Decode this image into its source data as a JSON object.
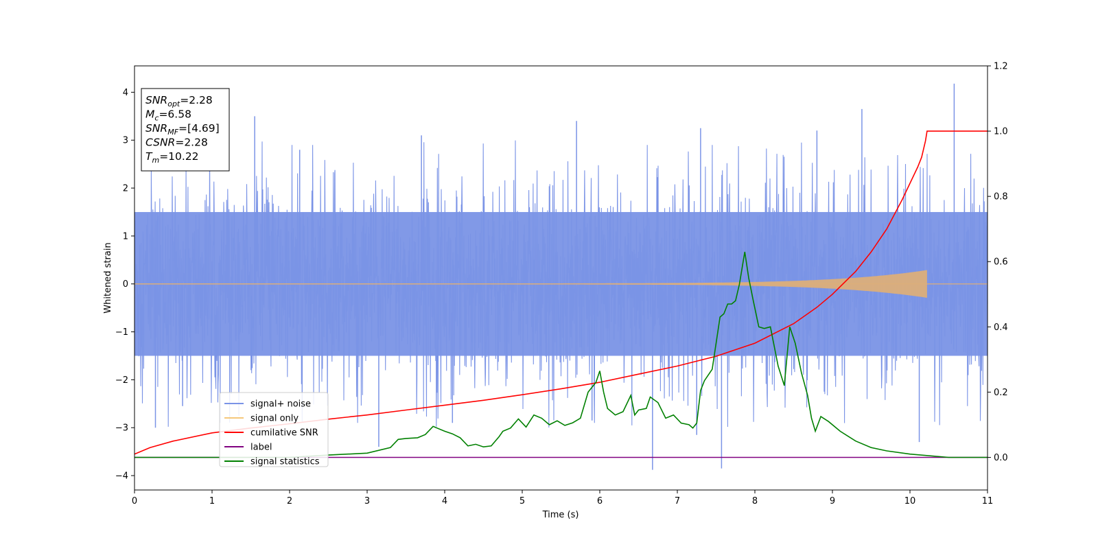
{
  "chart_data": {
    "type": "line",
    "xlabel": "Time (s)",
    "ylabel_left": "Whitened strain",
    "ylabel_right": "",
    "xlim": [
      0,
      11
    ],
    "ylim_left": [
      -4.3,
      4.55
    ],
    "ylim_right": [
      -0.1,
      1.2
    ],
    "x_ticks": [
      "0",
      "1",
      "2",
      "3",
      "4",
      "5",
      "6",
      "7",
      "8",
      "9",
      "10",
      "11"
    ],
    "y_ticks_left": [
      "−4",
      "−3",
      "−2",
      "−1",
      "0",
      "1",
      "2",
      "3",
      "4"
    ],
    "y_ticks_right": [
      "0.0",
      "0.2",
      "0.4",
      "0.6",
      "0.8",
      "1.0",
      "1.2"
    ],
    "legend_position": "lower-left",
    "info_box": {
      "position": "upper-left",
      "lines": [
        {
          "label": "SNR",
          "sub": "opt",
          "value": "=2.28"
        },
        {
          "label": "M",
          "sub": "c",
          "value": "=6.58"
        },
        {
          "label": "SNR",
          "sub": "MF",
          "value": "=[4.69]"
        },
        {
          "label": "CSNR",
          "sub": "",
          "value": "=2.28"
        },
        {
          "label": "T",
          "sub": "m",
          "value": "=10.22"
        }
      ]
    },
    "series": [
      {
        "name": "signal+ noise",
        "axis": "left",
        "color": "#7a93e6",
        "style": "noise",
        "band": [
          -1.5,
          1.5
        ],
        "peaks": [
          {
            "x": 0.27,
            "y": -3.0
          },
          {
            "x": 0.62,
            "y": -2.55
          },
          {
            "x": 1.55,
            "y": 3.5
          },
          {
            "x": 2.13,
            "y": 2.8
          },
          {
            "x": 3.15,
            "y": -3.4
          },
          {
            "x": 3.7,
            "y": 3.1
          },
          {
            "x": 4.1,
            "y": -2.9
          },
          {
            "x": 5.7,
            "y": 3.4
          },
          {
            "x": 5.9,
            "y": -2.85
          },
          {
            "x": 6.68,
            "y": -3.88
          },
          {
            "x": 7.25,
            "y": -3.15
          },
          {
            "x": 7.57,
            "y": -3.85
          },
          {
            "x": 7.3,
            "y": 3.25
          },
          {
            "x": 8.8,
            "y": 3.2
          },
          {
            "x": 9.38,
            "y": 3.65
          },
          {
            "x": 10.12,
            "y": -3.3
          },
          {
            "x": 10.57,
            "y": 4.18
          }
        ]
      },
      {
        "name": "signal only",
        "axis": "left",
        "color": "#f5c77a",
        "style": "chirp",
        "t_merge": 10.22,
        "amp_end": 0.28
      },
      {
        "name": "cumilative SNR",
        "axis": "right",
        "color": "#ff0000",
        "x": [
          0,
          0.2,
          0.5,
          1,
          1.5,
          2,
          2.5,
          3,
          3.5,
          4,
          4.5,
          5,
          5.5,
          6,
          6.5,
          7,
          7.5,
          8,
          8.5,
          8.8,
          9,
          9.3,
          9.5,
          9.7,
          9.9,
          10.0,
          10.1,
          10.15,
          10.2,
          10.22,
          11
        ],
        "y": [
          0.01,
          0.03,
          0.05,
          0.075,
          0.09,
          0.103,
          0.117,
          0.13,
          0.145,
          0.16,
          0.175,
          0.192,
          0.21,
          0.23,
          0.255,
          0.28,
          0.31,
          0.35,
          0.41,
          0.46,
          0.5,
          0.57,
          0.63,
          0.7,
          0.79,
          0.84,
          0.89,
          0.92,
          0.97,
          1.0,
          1.0
        ]
      },
      {
        "name": "label",
        "axis": "right",
        "color": "#800080",
        "x": [
          0,
          11
        ],
        "y": [
          0.0,
          0.0
        ]
      },
      {
        "name": "signal statistics",
        "axis": "right",
        "color": "#008000",
        "x": [
          0,
          1.0,
          2.0,
          2.5,
          3.0,
          3.3,
          3.4,
          3.5,
          3.65,
          3.75,
          3.85,
          3.9,
          4.0,
          4.1,
          4.2,
          4.3,
          4.4,
          4.5,
          4.6,
          4.7,
          4.75,
          4.85,
          4.95,
          5.05,
          5.15,
          5.25,
          5.35,
          5.45,
          5.55,
          5.65,
          5.75,
          5.85,
          5.95,
          6.0,
          6.05,
          6.1,
          6.2,
          6.3,
          6.4,
          6.45,
          6.5,
          6.6,
          6.65,
          6.75,
          6.85,
          6.95,
          7.05,
          7.15,
          7.2,
          7.25,
          7.3,
          7.35,
          7.45,
          7.5,
          7.55,
          7.6,
          7.65,
          7.7,
          7.75,
          7.8,
          7.87,
          7.92,
          7.98,
          8.05,
          8.12,
          8.2,
          8.3,
          8.38,
          8.45,
          8.52,
          8.6,
          8.68,
          8.73,
          8.78,
          8.85,
          8.95,
          9.1,
          9.3,
          9.5,
          9.7,
          10.0,
          10.5,
          11
        ],
        "y": [
          0.0,
          0.0,
          0.0,
          0.007,
          0.013,
          0.03,
          0.055,
          0.058,
          0.06,
          0.07,
          0.095,
          0.09,
          0.08,
          0.072,
          0.06,
          0.035,
          0.04,
          0.032,
          0.035,
          0.063,
          0.08,
          0.09,
          0.118,
          0.093,
          0.13,
          0.12,
          0.1,
          0.112,
          0.098,
          0.106,
          0.12,
          0.2,
          0.23,
          0.265,
          0.2,
          0.15,
          0.13,
          0.14,
          0.19,
          0.13,
          0.145,
          0.15,
          0.185,
          0.168,
          0.12,
          0.13,
          0.105,
          0.1,
          0.09,
          0.105,
          0.205,
          0.235,
          0.27,
          0.35,
          0.43,
          0.44,
          0.47,
          0.47,
          0.48,
          0.53,
          0.63,
          0.55,
          0.48,
          0.4,
          0.395,
          0.4,
          0.28,
          0.22,
          0.4,
          0.35,
          0.26,
          0.19,
          0.12,
          0.08,
          0.125,
          0.11,
          0.08,
          0.05,
          0.03,
          0.02,
          0.01,
          0.0,
          0.0
        ]
      }
    ]
  },
  "colors": {
    "noise": "#7a93e6",
    "signal": "#dcae7a",
    "csnr": "#ff0000",
    "label": "#800080",
    "stats": "#008000"
  }
}
